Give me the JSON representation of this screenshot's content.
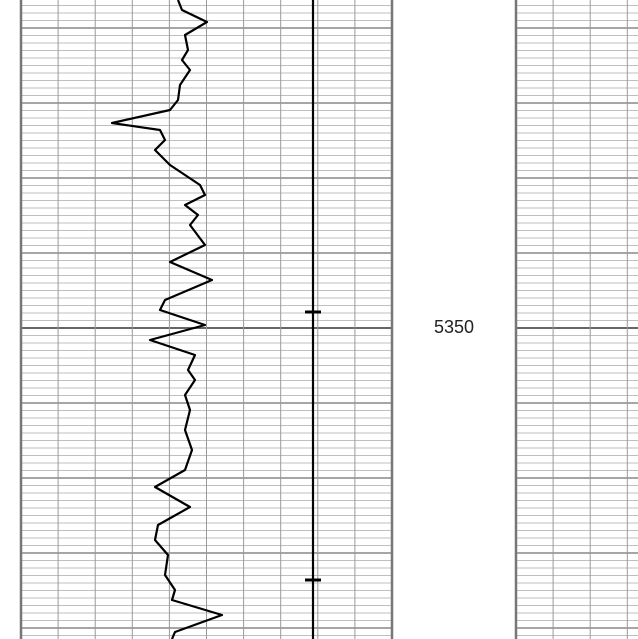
{
  "depth_label": "5350"
}
